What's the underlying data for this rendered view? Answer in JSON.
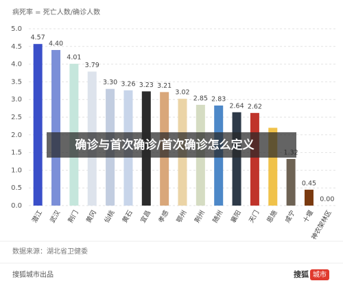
{
  "chart_data": {
    "type": "bar",
    "title": "病死率 = 死亡人数/确诊人数",
    "categories": [
      "潜江",
      "武汉",
      "荆门",
      "黄冈",
      "仙桃",
      "黄石",
      "宜昌",
      "孝感",
      "鄂州",
      "荆州",
      "随州",
      "襄阳",
      "天门",
      "恩施",
      "咸宁",
      "十堰",
      "神农架林区"
    ],
    "values": [
      4.57,
      4.4,
      4.01,
      3.79,
      3.3,
      3.26,
      3.23,
      3.21,
      3.02,
      2.85,
      2.83,
      2.64,
      2.62,
      2.2,
      1.32,
      0.45,
      0
    ],
    "value_labels": [
      "4.57",
      "4.40",
      "4.01",
      "3.79",
      "3.30",
      "3.26",
      "3.23",
      "3.21",
      "3.02",
      "2.85",
      "2.83",
      "2.64",
      "2.62",
      null,
      "1.32",
      "0.45",
      "0.00"
    ],
    "colors": [
      "#3a4fc9",
      "#7b8fd8",
      "#c5e6dc",
      "#dde3ec",
      "#c2cde0",
      "#c8d5ea",
      "#2b2b2b",
      "#d9a77a",
      "#ebd4a6",
      "#d5dcc2",
      "#4d88c8",
      "#2e3a48",
      "#c0342b",
      "#f0c24a",
      "#6e6354",
      "#7a3a10",
      "#e0e0e0"
    ],
    "ylim": [
      0,
      5
    ],
    "yticks": [
      {
        "value": 0,
        "label": "0.0"
      },
      {
        "value": 0.5,
        "label": "0.5"
      },
      {
        "value": 1,
        "label": "1.0"
      },
      {
        "value": 1.5,
        "label": "1.5"
      },
      {
        "value": 2,
        "label": "2.0"
      },
      {
        "value": 2.5,
        "label": "2.5"
      },
      {
        "value": 3,
        "label": "3.0"
      },
      {
        "value": 3.5,
        "label": "3.5"
      },
      {
        "value": 4,
        "label": "4.0"
      },
      {
        "value": 4.5,
        "label": "4.5"
      },
      {
        "value": 5,
        "label": "5.0"
      }
    ],
    "grid": true,
    "banner": "确诊与首次确诊/首次确诊怎么定义",
    "source": "数据来源：湖北省卫健委",
    "credit": "搜狐城市出品",
    "logo": [
      "搜狐",
      "城市"
    ]
  }
}
